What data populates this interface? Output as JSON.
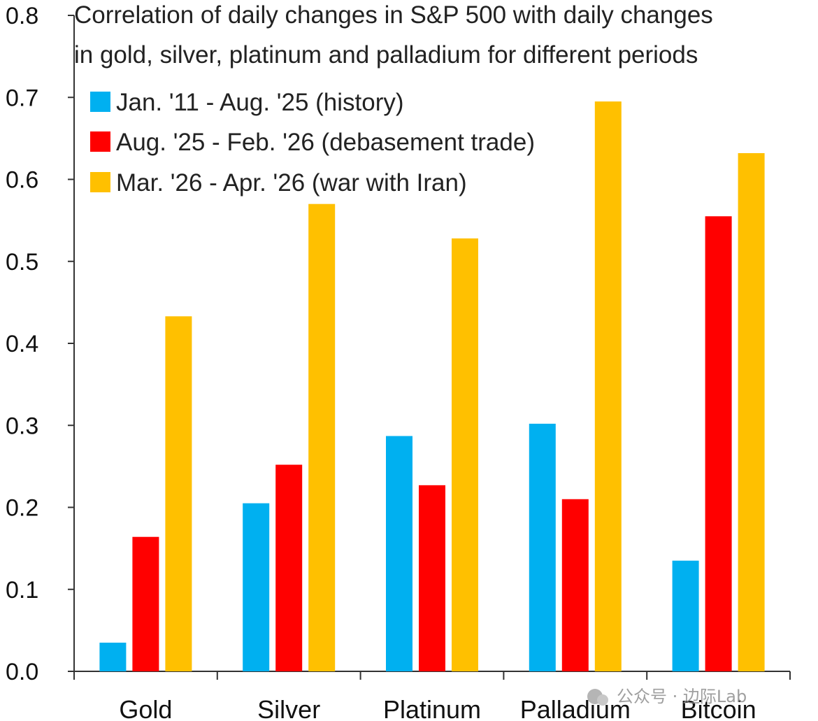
{
  "chart_data": {
    "type": "bar",
    "title_lines": [
      "Correlation of daily changes in S&P 500 with daily changes",
      "in gold, silver, platinum and palladium for different periods"
    ],
    "categories": [
      "Gold",
      "Silver",
      "Platinum",
      "Palladium",
      "Bitcoin"
    ],
    "series": [
      {
        "name": "Jan. '11 - Aug. '25 (history)",
        "color": "#00b0f0",
        "values": [
          0.035,
          0.205,
          0.287,
          0.302,
          0.135
        ]
      },
      {
        "name": "Aug. '25 - Feb. '26 (debasement trade)",
        "color": "#ff0000",
        "values": [
          0.164,
          0.252,
          0.227,
          0.21,
          0.555
        ]
      },
      {
        "name": "Mar. '26 - Apr. '26 (war with Iran)",
        "color": "#ffc000",
        "values": [
          0.433,
          0.57,
          0.528,
          0.695,
          0.632
        ]
      }
    ],
    "ylim": [
      0,
      0.8
    ],
    "yticks": [
      "0.0",
      "0.1",
      "0.2",
      "0.3",
      "0.4",
      "0.5",
      "0.6",
      "0.7",
      "0.8"
    ],
    "legend_position": "top-left",
    "grid": false,
    "xlabel": "",
    "ylabel": ""
  },
  "watermark": {
    "text": "公众号 · 边际Lab"
  }
}
